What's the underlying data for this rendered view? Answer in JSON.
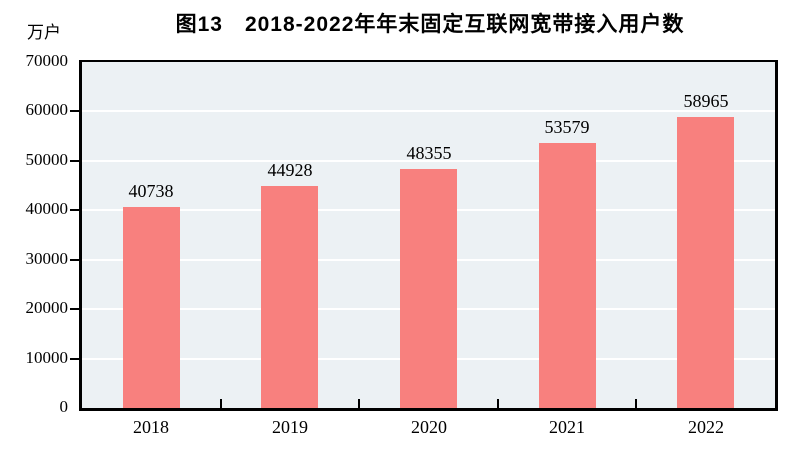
{
  "chart_data": {
    "type": "bar",
    "title": "图13　2018-2022年年末固定互联网宽带接入用户数",
    "unit_label": "万户",
    "categories": [
      "2018",
      "2019",
      "2020",
      "2021",
      "2022"
    ],
    "values": [
      40738,
      44928,
      48355,
      53579,
      58965
    ],
    "data_labels": [
      "40738",
      "44928",
      "48355",
      "53579",
      "58965"
    ],
    "yticks": [
      0,
      10000,
      20000,
      30000,
      40000,
      50000,
      60000,
      70000
    ],
    "ylim": [
      0,
      70000
    ],
    "grid": true,
    "legend": "none",
    "colors": {
      "bar_fill": "#F8807E",
      "plot_background": "#ECF1F4",
      "gridline": "#FFFFFF",
      "axis": "#000000",
      "text": "#000000"
    }
  }
}
